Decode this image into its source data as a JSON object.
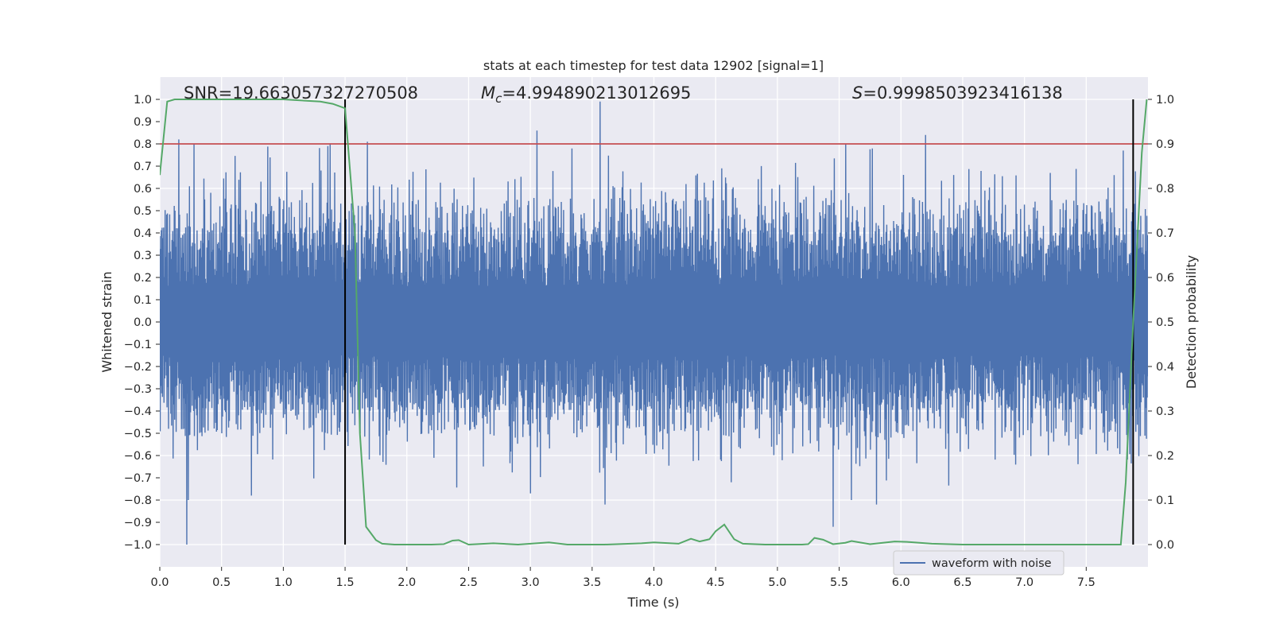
{
  "chart_data": {
    "type": "line",
    "title": "stats at each timestep for test data 12902 [signal=1]",
    "xlabel": "Time (s)",
    "ylabel": "Whitened strain",
    "y2label": "Detection probability",
    "xlim": [
      0.0,
      8.0
    ],
    "ylim": [
      -1.1,
      1.1
    ],
    "y2lim": [
      -0.05,
      1.05
    ],
    "x_ticks": [
      "0.0",
      "0.5",
      "1.0",
      "1.5",
      "2.0",
      "2.5",
      "3.0",
      "3.5",
      "4.0",
      "4.5",
      "5.0",
      "5.5",
      "6.0",
      "6.5",
      "7.0",
      "7.5"
    ],
    "y_ticks": [
      "1.0",
      "0.9",
      "0.8",
      "0.7",
      "0.6",
      "0.5",
      "0.4",
      "0.3",
      "0.2",
      "0.1",
      "0.0",
      "−0.1",
      "−0.2",
      "−0.3",
      "−0.4",
      "−0.5",
      "−0.6",
      "−0.7",
      "−0.8",
      "−0.9",
      "−1.0"
    ],
    "y2_ticks": [
      "1.0",
      "0.9",
      "0.8",
      "0.7",
      "0.6",
      "0.5",
      "0.4",
      "0.3",
      "0.2",
      "0.1",
      "0.0"
    ],
    "grid": true,
    "legend": {
      "location": "lower-right",
      "entries": [
        "waveform with noise"
      ]
    },
    "annotations": {
      "snr": "SNR=19.663057327270508",
      "mc_symbol": "M",
      "mc_sub": "c",
      "mc_value": "=4.994890213012695",
      "s_symbol": "S",
      "s_value": "=0.9998503923416138"
    },
    "threshold": {
      "value": 0.9,
      "axis": "detection_probability"
    },
    "vlines": [
      1.5,
      7.88
    ],
    "series": [
      {
        "name": "waveform with noise",
        "axis": "whitened_strain",
        "kind": "dense_noise",
        "duration_s": 8.0,
        "envelope": {
          "typical_max": 0.45,
          "typical_min": -0.42,
          "peak_max": 0.99,
          "peak_min": -1.0
        },
        "notable_peaks": [
          {
            "t": 0.15,
            "v": 0.82
          },
          {
            "t": 0.22,
            "v": -1.0
          },
          {
            "t": 0.23,
            "v": -0.8
          },
          {
            "t": 0.74,
            "v": -0.78
          },
          {
            "t": 1.36,
            "v": 0.79
          },
          {
            "t": 1.38,
            "v": 0.8
          },
          {
            "t": 1.68,
            "v": 0.81
          },
          {
            "t": 3.0,
            "v": -0.77
          },
          {
            "t": 3.56,
            "v": 0.99
          },
          {
            "t": 3.6,
            "v": -0.82
          },
          {
            "t": 3.05,
            "v": 0.86
          },
          {
            "t": 5.45,
            "v": -0.92
          },
          {
            "t": 5.55,
            "v": 0.8
          },
          {
            "t": 5.8,
            "v": -0.82
          },
          {
            "t": 6.2,
            "v": 0.84
          },
          {
            "t": 5.6,
            "v": -0.8
          },
          {
            "t": 7.8,
            "v": 0.77
          }
        ]
      },
      {
        "name": "detection probability",
        "axis": "detection_probability",
        "x": [
          0.0,
          0.06,
          0.12,
          0.5,
          1.0,
          1.3,
          1.4,
          1.5,
          1.58,
          1.62,
          1.67,
          1.75,
          1.8,
          1.9,
          2.2,
          2.3,
          2.37,
          2.42,
          2.5,
          2.7,
          2.9,
          3.15,
          3.3,
          3.6,
          3.9,
          4.0,
          4.2,
          4.3,
          4.37,
          4.45,
          4.5,
          4.57,
          4.65,
          4.72,
          4.9,
          5.2,
          5.25,
          5.3,
          5.37,
          5.45,
          5.55,
          5.6,
          5.75,
          5.95,
          6.05,
          6.25,
          6.5,
          7.0,
          7.5,
          7.78,
          7.82,
          7.88,
          7.95,
          7.99
        ],
        "y": [
          0.83,
          0.995,
          1.0,
          1.0,
          1.0,
          0.995,
          0.99,
          0.98,
          0.7,
          0.25,
          0.04,
          0.01,
          0.002,
          0.0,
          0.0,
          0.001,
          0.009,
          0.01,
          0.0,
          0.003,
          0.0,
          0.005,
          0.0,
          0.0,
          0.003,
          0.005,
          0.002,
          0.013,
          0.007,
          0.012,
          0.03,
          0.045,
          0.012,
          0.002,
          0.0,
          0.0,
          0.001,
          0.015,
          0.011,
          0.001,
          0.004,
          0.008,
          0.001,
          0.007,
          0.006,
          0.002,
          0.0,
          0.0,
          0.0,
          0.0,
          0.14,
          0.5,
          0.88,
          1.0
        ]
      }
    ]
  }
}
